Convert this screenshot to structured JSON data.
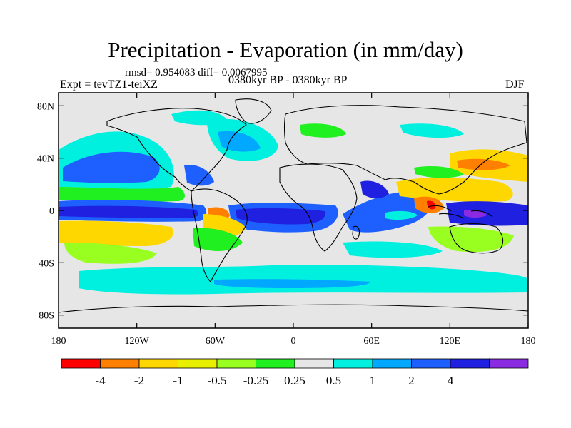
{
  "header": {
    "title": "Precipitation - Evaporation (in mm/day)",
    "stats": "rmsd= 0.954083  diff= 0.0067995",
    "expt": "Expt = tevTZ1-teiXZ",
    "period": "0380kyr BP - 0380kyr BP",
    "season": "DJF"
  },
  "axes": {
    "lat_ticks": [
      {
        "value": 80,
        "label": "80N"
      },
      {
        "value": 40,
        "label": "40N"
      },
      {
        "value": 0,
        "label": "0"
      },
      {
        "value": -40,
        "label": "40S"
      },
      {
        "value": -80,
        "label": "80S"
      }
    ],
    "lon_ticks": [
      {
        "value": -180,
        "label": "180"
      },
      {
        "value": -120,
        "label": "120W"
      },
      {
        "value": -60,
        "label": "60W"
      },
      {
        "value": 0,
        "label": "0"
      },
      {
        "value": 60,
        "label": "60E"
      },
      {
        "value": 120,
        "label": "120E"
      },
      {
        "value": 180,
        "label": "180"
      }
    ],
    "lon_range": [
      -180,
      180
    ],
    "lat_range": [
      -90,
      90
    ]
  },
  "colorbar": {
    "colors": [
      "#ff0000",
      "#ff8000",
      "#ffd700",
      "#e8f000",
      "#98ff20",
      "#20ef20",
      "#e6e6e6",
      "#00f0e0",
      "#00a8ff",
      "#1e60ff",
      "#2020e0",
      "#8a2be2"
    ],
    "labels": [
      "-4",
      "-2",
      "-1",
      "-0.5",
      "-0.25",
      "0.25",
      "0.5",
      "1",
      "2",
      "4"
    ]
  },
  "map_colors": {
    "background": "#e6e6e6",
    "coast": "#000000"
  }
}
